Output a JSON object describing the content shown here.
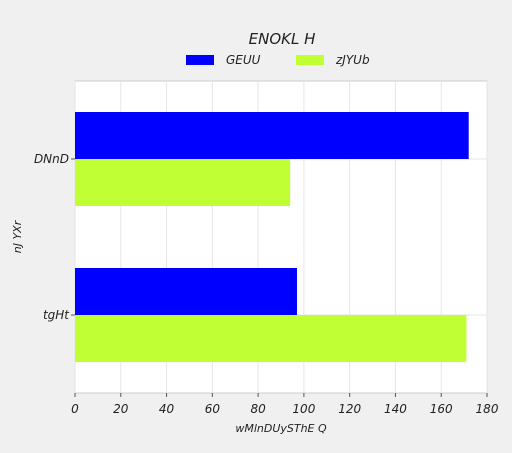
{
  "chart_data": {
    "type": "bar",
    "orientation": "horizontal",
    "title": "ENOKL H",
    "xlabel": "wMlnDUySThE Q",
    "ylabel": "nJ YXr",
    "categories": [
      "DNnD",
      "tgHt"
    ],
    "series": [
      {
        "name": "GEUU",
        "color": "#0000ff",
        "values": [
          172,
          97
        ]
      },
      {
        "name": "zJYUb",
        "color": "#c0ff33",
        "values": [
          94,
          171
        ]
      }
    ],
    "xlim": [
      0,
      180
    ],
    "xticks": [
      0,
      20,
      40,
      60,
      80,
      100,
      120,
      140,
      160,
      180
    ],
    "grid": true,
    "legend_position": "top-center"
  }
}
